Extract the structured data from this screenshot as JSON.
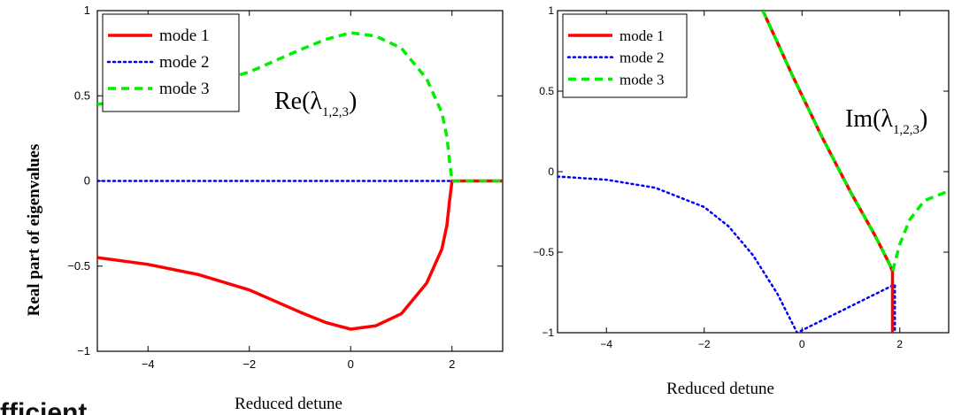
{
  "bottom_cut_text": "fficient",
  "chart_data": [
    {
      "type": "line",
      "ylabel": "Real part of eigenvalues",
      "xlabel": "Reduced detune",
      "annotation": "Re(λ1,2,3)",
      "xlim": [
        -5,
        3
      ],
      "ylim": [
        -1,
        1
      ],
      "xticks": [
        -4,
        -2,
        0,
        2
      ],
      "yticks": [
        -1,
        -0.5,
        0,
        0.5,
        1
      ],
      "xtick_labels": [
        "−4",
        "−2",
        "0",
        "2"
      ],
      "ytick_labels": [
        "−1",
        "−0.5",
        "0",
        "0.5",
        "1"
      ],
      "grid": false,
      "legend_position": "top-left",
      "series": [
        {
          "name": "mode 1",
          "color": "#ff0000",
          "style": "solid",
          "x": [
            -5,
            -4,
            -3,
            -2,
            -1,
            -0.5,
            0,
            0.5,
            1,
            1.5,
            1.8,
            1.9,
            1.95,
            2,
            3
          ],
          "y": [
            -0.45,
            -0.49,
            -0.55,
            -0.64,
            -0.77,
            -0.83,
            -0.87,
            -0.85,
            -0.78,
            -0.6,
            -0.4,
            -0.26,
            -0.12,
            0,
            0
          ]
        },
        {
          "name": "mode 2",
          "color": "#0000ff",
          "style": "dotted",
          "x": [
            -5,
            3
          ],
          "y": [
            0,
            0
          ]
        },
        {
          "name": "mode 3",
          "color": "#00ee00",
          "style": "dashed",
          "x": [
            -5,
            -4,
            -3,
            -2,
            -1,
            -0.5,
            0,
            0.5,
            1,
            1.5,
            1.8,
            1.9,
            1.95,
            2,
            3
          ],
          "y": [
            0.45,
            0.49,
            0.55,
            0.64,
            0.77,
            0.83,
            0.87,
            0.85,
            0.78,
            0.6,
            0.4,
            0.26,
            0.12,
            0,
            0
          ]
        }
      ]
    },
    {
      "type": "line",
      "xlabel": "Reduced detune",
      "annotation": "Im(λ1,2,3)",
      "xlim": [
        -5,
        3
      ],
      "ylim": [
        -1,
        1
      ],
      "xticks": [
        -4,
        -2,
        0,
        2
      ],
      "yticks": [
        -1,
        -0.5,
        0,
        0.5,
        1
      ],
      "xtick_labels": [
        "−4",
        "−2",
        "0",
        "2"
      ],
      "ytick_labels": [
        "−1",
        "−0.5",
        "0",
        "0.5",
        "1"
      ],
      "grid": false,
      "legend_position": "top-left",
      "series": [
        {
          "name": "mode 1",
          "color": "#ff0000",
          "style": "solid",
          "x": [
            -0.8,
            -0.2,
            0.4,
            1.0,
            1.5,
            1.8,
            1.85,
            1.85,
            1.85
          ],
          "y": [
            1.0,
            0.6,
            0.22,
            -0.13,
            -0.4,
            -0.58,
            -0.62,
            -0.8,
            -1.0
          ]
        },
        {
          "name": "mode 2",
          "color": "#0000ff",
          "style": "dotted",
          "x": [
            -5,
            -4,
            -3,
            -2,
            -1.5,
            -1,
            -0.5,
            -0.1,
            1.9,
            1.9
          ],
          "y": [
            -0.03,
            -0.05,
            -0.1,
            -0.22,
            -0.34,
            -0.52,
            -0.76,
            -1.0,
            -0.7,
            -1.0
          ]
        },
        {
          "name": "mode 3",
          "color": "#00ee00",
          "style": "dashed",
          "x": [
            -0.8,
            -0.2,
            0.4,
            1.0,
            1.5,
            1.8,
            1.85,
            2.0,
            2.2,
            2.5,
            3.0
          ],
          "y": [
            1.0,
            0.6,
            0.22,
            -0.13,
            -0.4,
            -0.58,
            -0.62,
            -0.45,
            -0.3,
            -0.18,
            -0.12
          ]
        }
      ]
    }
  ]
}
